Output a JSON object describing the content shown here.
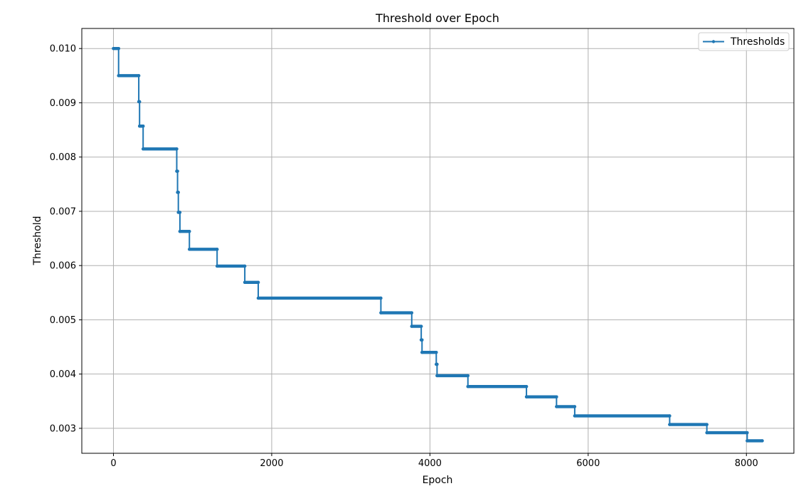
{
  "chart_data": {
    "type": "line",
    "title": "Threshold over Epoch",
    "xlabel": "Epoch",
    "ylabel": "Threshold",
    "xlim": [
      -400,
      8600
    ],
    "ylim": [
      0.00254,
      0.01037
    ],
    "x_ticks": [
      0,
      2000,
      4000,
      6000,
      8000
    ],
    "x_tick_labels": [
      "0",
      "2000",
      "4000",
      "6000",
      "8000"
    ],
    "y_ticks": [
      0.003,
      0.004,
      0.005,
      0.006,
      0.007,
      0.008,
      0.009,
      0.01
    ],
    "y_tick_labels": [
      "0.003",
      "0.004",
      "0.005",
      "0.006",
      "0.007",
      "0.008",
      "0.009",
      "0.010"
    ],
    "grid": true,
    "legend_position": "top-right",
    "series": [
      {
        "name": "Thresholds",
        "color": "#1f77b4",
        "marker": "dot",
        "steps": [
          {
            "x_start": 0,
            "x_end": 65,
            "y": 0.01
          },
          {
            "x_start": 65,
            "x_end": 320,
            "y": 0.0095
          },
          {
            "x_start": 320,
            "x_end": 330,
            "y": 0.00902
          },
          {
            "x_start": 330,
            "x_end": 375,
            "y": 0.00857
          },
          {
            "x_start": 375,
            "x_end": 800,
            "y": 0.00815
          },
          {
            "x_start": 800,
            "x_end": 810,
            "y": 0.00774
          },
          {
            "x_start": 810,
            "x_end": 820,
            "y": 0.00735
          },
          {
            "x_start": 820,
            "x_end": 840,
            "y": 0.00698
          },
          {
            "x_start": 840,
            "x_end": 960,
            "y": 0.00663
          },
          {
            "x_start": 960,
            "x_end": 1310,
            "y": 0.0063
          },
          {
            "x_start": 1310,
            "x_end": 1660,
            "y": 0.00599
          },
          {
            "x_start": 1660,
            "x_end": 1830,
            "y": 0.00569
          },
          {
            "x_start": 1830,
            "x_end": 3380,
            "y": 0.0054
          },
          {
            "x_start": 3380,
            "x_end": 3770,
            "y": 0.00513
          },
          {
            "x_start": 3770,
            "x_end": 3890,
            "y": 0.00488
          },
          {
            "x_start": 3890,
            "x_end": 3900,
            "y": 0.00463
          },
          {
            "x_start": 3900,
            "x_end": 4080,
            "y": 0.0044
          },
          {
            "x_start": 4080,
            "x_end": 4090,
            "y": 0.00418
          },
          {
            "x_start": 4090,
            "x_end": 4480,
            "y": 0.00397
          },
          {
            "x_start": 4480,
            "x_end": 5220,
            "y": 0.00377
          },
          {
            "x_start": 5220,
            "x_end": 5600,
            "y": 0.00358
          },
          {
            "x_start": 5600,
            "x_end": 5830,
            "y": 0.0034
          },
          {
            "x_start": 5830,
            "x_end": 7030,
            "y": 0.00323
          },
          {
            "x_start": 7030,
            "x_end": 7500,
            "y": 0.00307
          },
          {
            "x_start": 7500,
            "x_end": 8010,
            "y": 0.00292
          },
          {
            "x_start": 8010,
            "x_end": 8200,
            "y": 0.00277
          }
        ]
      }
    ]
  }
}
